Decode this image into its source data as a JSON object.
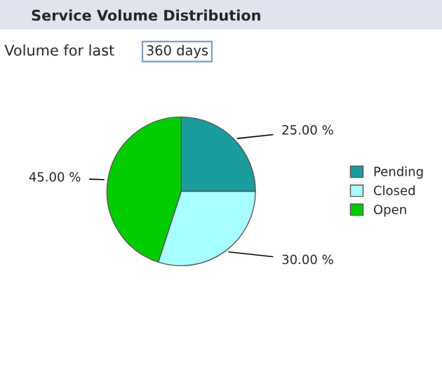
{
  "chart_data": {
    "type": "pie",
    "title": "Service Volume Distribution",
    "annotations": [
      "Volume for last",
      "360 days"
    ],
    "categories": [
      "Pending",
      "Closed",
      "Open"
    ],
    "values": [
      25,
      30,
      45
    ],
    "colors": [
      "#1a9c9c",
      "#a8ffff",
      "#00cc00"
    ],
    "value_labels": [
      "25.00 %",
      "30.00 %",
      "45.00 %"
    ],
    "legend": "right"
  }
}
